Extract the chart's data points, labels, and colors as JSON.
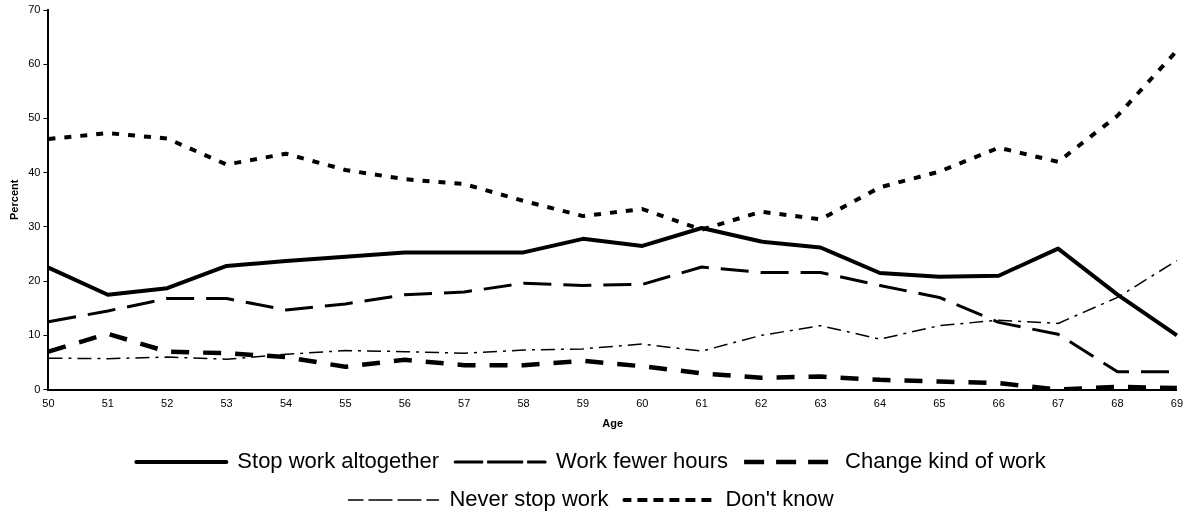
{
  "chart_data": {
    "type": "line",
    "xlabel": "Age",
    "ylabel": "Percent",
    "categories": [
      "50",
      "51",
      "52",
      "53",
      "54",
      "55",
      "56",
      "57",
      "58",
      "59",
      "60",
      "61",
      "62",
      "63",
      "64",
      "65",
      "66",
      "67",
      "68",
      "69"
    ],
    "ylim": [
      0,
      70
    ],
    "yticks": [
      0,
      10,
      20,
      30,
      40,
      50,
      60,
      70
    ],
    "grid": false,
    "legend": "bottom",
    "marker": "none",
    "series": [
      {
        "name": "Stop work altogether",
        "color": "#000000",
        "line_style": "solid",
        "values": [
          22.5,
          17.5,
          18.7,
          22.8,
          23.7,
          24.5,
          25.3,
          25.3,
          25.3,
          27.8,
          26.5,
          29.8,
          27.3,
          26.2,
          21.5,
          20.8,
          21,
          26,
          17.5,
          10
        ]
      },
      {
        "name": "Work fewer hours",
        "color": "#000000",
        "line_style": "dashed",
        "values": [
          12.5,
          14.5,
          16.8,
          16.8,
          14.7,
          15.8,
          17.5,
          18,
          19.6,
          19.2,
          19.4,
          22.6,
          21.6,
          21.6,
          19.2,
          17,
          12.4,
          10.2,
          3.3,
          3.3
        ]
      },
      {
        "name": "Change kind of work",
        "color": "#000000",
        "line_style": "dashed",
        "values": [
          7,
          10.3,
          7,
          6.7,
          6,
          4.2,
          5.5,
          4.5,
          4.5,
          5.3,
          4.3,
          3,
          2.2,
          2.4,
          1.8,
          1.5,
          1.2,
          0,
          0.5,
          0.3
        ]
      },
      {
        "name": "Never stop work",
        "color": "#000000",
        "line_style": "dashdot",
        "values": [
          5.8,
          5.7,
          6,
          5.6,
          6.5,
          7.2,
          7,
          6.7,
          7.3,
          7.5,
          8.4,
          7.1,
          10,
          11.8,
          9.3,
          11.8,
          12.8,
          12.2,
          17,
          23.8
        ]
      },
      {
        "name": "Don't know",
        "color": "#000000",
        "line_style": "dotted",
        "values": [
          46.2,
          47.3,
          46.3,
          41.5,
          43.5,
          40.5,
          38.8,
          37.9,
          34.8,
          32,
          33.3,
          29.5,
          32.8,
          31.4,
          37.3,
          40.2,
          44.6,
          42,
          50.5,
          62.5
        ]
      }
    ]
  }
}
